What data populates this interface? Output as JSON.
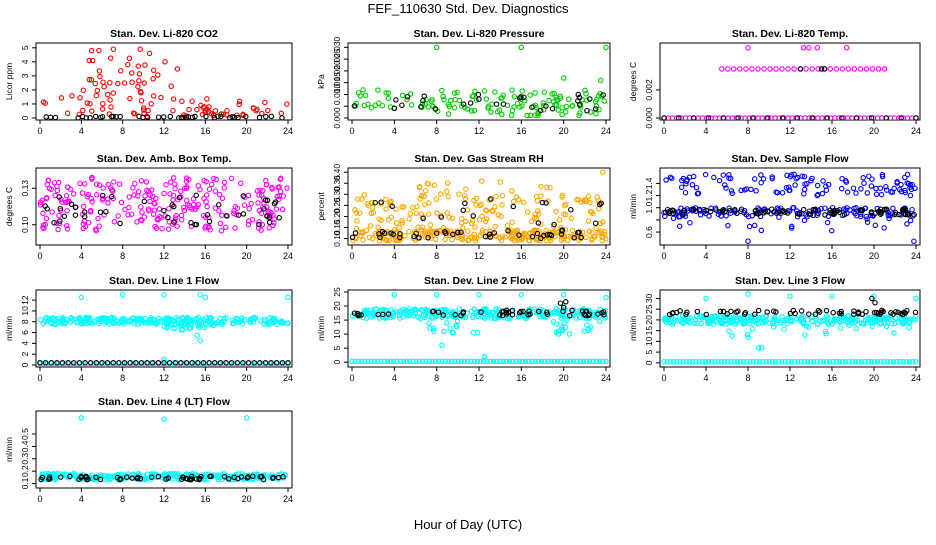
{
  "page": {
    "title": "FEF_110630  Std. Dev. Diagnostics",
    "xlabel": "Hour of Day (UTC)"
  },
  "colors": {
    "red": "#ff0000",
    "green": "#00cc00",
    "magenta": "#ff00ff",
    "orange": "#ffa500",
    "blue": "#0000ff",
    "cyan": "#00ffff",
    "black": "#000000"
  },
  "chart_data": [
    {
      "type": "scatter",
      "title": "Stan. Dev. Li-820 CO2",
      "ylabel": "Licor ppm",
      "xlim": [
        0,
        24
      ],
      "xticks": [
        0,
        4,
        8,
        12,
        16,
        20,
        24
      ],
      "ylim": [
        0,
        5.2
      ],
      "yticks": [
        0,
        1,
        2,
        3,
        4,
        5
      ],
      "series": [
        {
          "color": "red",
          "bands": [
            [
              0.1,
              0.6,
              30,
              0,
              24
            ],
            [
              0.5,
              1.5,
              22,
              0,
              24
            ],
            [
              1.0,
              2.8,
              24,
              3,
              13
            ],
            [
              2.5,
              4.3,
              14,
              4,
              12
            ],
            [
              0.3,
              0.9,
              10,
              13,
              24
            ]
          ],
          "points": [
            [
              5,
              4.8
            ],
            [
              5.7,
              4.8
            ],
            [
              7.1,
              4.9
            ],
            [
              9.7,
              4.9
            ],
            [
              10.6,
              4.6
            ],
            [
              8.5,
              3.8
            ],
            [
              9.5,
              3.7
            ],
            [
              11.0,
              3.4
            ],
            [
              13.3,
              3.5
            ],
            [
              12.1,
              4.0
            ]
          ]
        },
        {
          "color": "black",
          "bands": [
            [
              0.0,
              0.12,
              40,
              0,
              24
            ]
          ],
          "points": []
        }
      ]
    },
    {
      "type": "scatter",
      "title": "Stan. Dev. Li-820 Pressure",
      "ylabel": "kPa",
      "xlim": [
        0,
        24
      ],
      "xticks": [
        0,
        4,
        8,
        12,
        16,
        20,
        24
      ],
      "ylim": [
        0,
        0.031
      ],
      "yticks": [
        0.0,
        0.005,
        0.01,
        0.015,
        0.02,
        0.025,
        0.03
      ],
      "ytick_labels": [
        "0.000",
        "",
        "0.010",
        "0.015",
        "0.020",
        "0.025",
        "0.030"
      ],
      "series": [
        {
          "color": "green",
          "bands": [
            [
              0.004,
              0.012,
              90,
              0,
              24
            ],
            [
              0.001,
              0.006,
              40,
              8,
              24
            ]
          ],
          "points": [
            [
              8,
              0.03
            ],
            [
              16,
              0.03
            ],
            [
              24,
              0.03
            ],
            [
              20,
              0.017
            ],
            [
              23.5,
              0.016
            ]
          ]
        },
        {
          "color": "black",
          "bands": [
            [
              0.003,
              0.01,
              30,
              0,
              24
            ]
          ],
          "points": []
        }
      ]
    },
    {
      "type": "scatter",
      "title": "Stan. Dev. Li-820 Temp.",
      "ylabel": "degrees C",
      "xlim": [
        0,
        24
      ],
      "xticks": [
        0,
        4,
        8,
        12,
        16,
        20,
        24
      ],
      "ylim": [
        0,
        0.0052
      ],
      "yticks": [
        0.0,
        0.002
      ],
      "ytick_labels": [
        "0.000",
        "0.002"
      ],
      "series": [
        {
          "color": "magenta",
          "bands": [],
          "points": [
            [
              8,
              0.005
            ],
            [
              13.3,
              0.005
            ],
            [
              13.8,
              0.005
            ],
            [
              14.6,
              0.005
            ],
            [
              17.4,
              0.005
            ]
          ],
          "rows": [
            [
              0.0,
              0,
              24,
              60
            ],
            [
              0.0035,
              5.5,
              21,
              28
            ]
          ]
        },
        {
          "color": "black",
          "bands": [],
          "points": [
            [
              13,
              0.0035
            ],
            [
              15,
              0.0035
            ],
            [
              15.3,
              0.0035
            ]
          ],
          "rows": [
            [
              0.0,
              0,
              24,
              18
            ]
          ]
        }
      ]
    },
    {
      "type": "scatter",
      "title": "Stan. Dev. Amb. Box Temp.",
      "ylabel": "degrees C",
      "xlim": [
        0,
        24
      ],
      "xticks": [
        0,
        4,
        8,
        12,
        16,
        20,
        24
      ],
      "ylim": [
        0.085,
        0.145
      ],
      "yticks": [
        0.1,
        0.13
      ],
      "ytick_labels": [
        "0.10",
        "0.13"
      ],
      "series": [
        {
          "color": "magenta",
          "bands": [
            [
              0.095,
              0.14,
              260,
              0,
              24
            ]
          ],
          "points": []
        },
        {
          "color": "black",
          "bands": [
            [
              0.1,
              0.125,
              45,
              0,
              24
            ]
          ],
          "points": []
        }
      ]
    },
    {
      "type": "scatter",
      "title": "Stan. Dev. Gas Stream RH",
      "ylabel": "percent",
      "xlim": [
        0,
        24
      ],
      "xticks": [
        0,
        4,
        8,
        12,
        16,
        20,
        24
      ],
      "ylim": [
        0.08,
        0.41
      ],
      "yticks": [
        0.1,
        0.15,
        0.2,
        0.25,
        0.3,
        0.35,
        0.4
      ],
      "ytick_labels": [
        "0.10",
        "0.15",
        "0.20",
        "0.25",
        "0.30",
        "0.35",
        "0.40"
      ],
      "series": [
        {
          "color": "orange",
          "bands": [
            [
              0.09,
              0.14,
              200,
              0,
              24
            ],
            [
              0.13,
              0.3,
              150,
              0,
              24
            ],
            [
              0.28,
              0.36,
              20,
              6,
              20
            ]
          ],
          "points": [
            [
              23.7,
              0.4
            ]
          ]
        },
        {
          "color": "black",
          "bands": [
            [
              0.1,
              0.14,
              40,
              0,
              24
            ],
            [
              0.16,
              0.28,
              18,
              0,
              24
            ]
          ],
          "points": []
        }
      ]
    },
    {
      "type": "scatter",
      "title": "Stan. Dev. Sample Flow",
      "ylabel": "ml/min",
      "xlim": [
        0,
        24
      ],
      "xticks": [
        0,
        4,
        8,
        12,
        16,
        20,
        24
      ],
      "ylim": [
        0.42,
        1.62
      ],
      "yticks": [
        0.6,
        0.8,
        1.0,
        1.2,
        1.4
      ],
      "ytick_labels": [
        "0.6",
        "",
        "1.0",
        "1.2",
        "1.4"
      ],
      "series": [
        {
          "color": "blue",
          "bands": [
            [
              0.85,
              1.0,
              120,
              0,
              24
            ],
            [
              1.2,
              1.55,
              110,
              0,
              24
            ],
            [
              0.6,
              0.85,
              20,
              0,
              24
            ]
          ],
          "points": [
            [
              8,
              0.45
            ],
            [
              23.8,
              0.45
            ]
          ]
        },
        {
          "color": "black",
          "bands": [
            [
              0.88,
              0.98,
              90,
              0,
              24
            ]
          ],
          "points": []
        }
      ]
    },
    {
      "type": "scatter",
      "title": "Stan. Dev. Line 1 Flow",
      "ylabel": "ml/min",
      "xlim": [
        0,
        24
      ],
      "xticks": [
        0,
        4,
        8,
        12,
        16,
        20,
        24
      ],
      "ylim": [
        0,
        13.5
      ],
      "yticks": [
        0,
        2,
        4,
        6,
        8,
        10,
        12
      ],
      "series": [
        {
          "color": "cyan",
          "bands": [
            [
              7.5,
              8.8,
              260,
              0,
              24
            ],
            [
              6.5,
              7.5,
              20,
              12,
              17
            ]
          ],
          "points": [
            [
              4,
              12.5
            ],
            [
              8,
              13.0
            ],
            [
              12,
              13.0
            ],
            [
              15.5,
              13.0
            ],
            [
              16,
              12.5
            ],
            [
              24,
              12.5
            ],
            [
              15.2,
              5.5
            ],
            [
              15.5,
              4.5
            ],
            [
              12,
              1
            ]
          ],
          "rows": [
            [
              0.3,
              0,
              24,
              70
            ]
          ]
        },
        {
          "color": "black",
          "bands": [],
          "points": [],
          "rows": [
            [
              0.4,
              0,
              24,
              45
            ]
          ]
        }
      ]
    },
    {
      "type": "scatter",
      "title": "Stan. Dev. Line 2 Flow",
      "ylabel": "ml/min",
      "xlim": [
        0,
        24
      ],
      "xticks": [
        0,
        4,
        8,
        12,
        16,
        20,
        24
      ],
      "ylim": [
        -1,
        25
      ],
      "yticks": [
        0,
        5,
        10,
        15,
        20,
        25
      ],
      "series": [
        {
          "color": "cyan",
          "bands": [
            [
              15.5,
              19.0,
              260,
              0,
              24
            ],
            [
              10,
              15,
              14,
              7,
              12
            ],
            [
              10,
              15,
              18,
              19,
              24
            ]
          ],
          "points": [
            [
              4,
              24
            ],
            [
              8,
              24
            ],
            [
              12,
              24
            ],
            [
              16,
              24
            ],
            [
              20,
              24
            ],
            [
              24,
              23
            ],
            [
              8.5,
              6
            ],
            [
              12.5,
              2
            ]
          ],
          "rows": [
            [
              0.3,
              0,
              24,
              80
            ]
          ]
        },
        {
          "color": "black",
          "bands": [
            [
              16.5,
              18.5,
              50,
              0,
              24
            ]
          ],
          "points": [
            [
              19.7,
              21.0
            ],
            [
              20,
              19.5
            ],
            [
              20.2,
              21.5
            ]
          ]
        }
      ]
    },
    {
      "type": "scatter",
      "title": "Stan. Dev. Line 3 Flow",
      "ylabel": "ml/min",
      "xlim": [
        0,
        24
      ],
      "xticks": [
        0,
        4,
        8,
        12,
        16,
        20,
        24
      ],
      "ylim": [
        -1,
        33
      ],
      "yticks": [
        0,
        5,
        10,
        15,
        20,
        25,
        30
      ],
      "series": [
        {
          "color": "cyan",
          "bands": [
            [
              18,
              22,
              260,
              0,
              24
            ],
            [
              12,
              18,
              18,
              6,
              24
            ]
          ],
          "points": [
            [
              4,
              30
            ],
            [
              8,
              32
            ],
            [
              12,
              31
            ],
            [
              16,
              31
            ],
            [
              20,
              31
            ],
            [
              24,
              30
            ],
            [
              8,
              12
            ],
            [
              9,
              7
            ],
            [
              9.3,
              7
            ]
          ],
          "rows": [
            [
              0.5,
              0,
              24,
              80
            ]
          ]
        },
        {
          "color": "black",
          "bands": [
            [
              22.5,
              24.5,
              60,
              0,
              24
            ]
          ],
          "points": [
            [
              19.8,
              30
            ],
            [
              20.1,
              28
            ]
          ]
        }
      ]
    },
    {
      "type": "scatter",
      "title": "Stan. Dev. Line 4 (LT) Flow",
      "ylabel": "ml/min",
      "xlim": [
        0,
        24
      ],
      "xticks": [
        0,
        4,
        8,
        12,
        16,
        20,
        24
      ],
      "ylim": [
        0.08,
        0.67
      ],
      "yticks": [
        0.1,
        0.2,
        0.3,
        0.4,
        0.5
      ],
      "series": [
        {
          "color": "cyan",
          "bands": [
            [
              0.13,
              0.18,
              260,
              0,
              24
            ]
          ],
          "points": [
            [
              4,
              0.63
            ],
            [
              12,
              0.62
            ],
            [
              20,
              0.63
            ]
          ]
        },
        {
          "color": "black",
          "bands": [
            [
              0.13,
              0.16,
              60,
              0,
              24
            ]
          ],
          "points": []
        }
      ]
    }
  ]
}
